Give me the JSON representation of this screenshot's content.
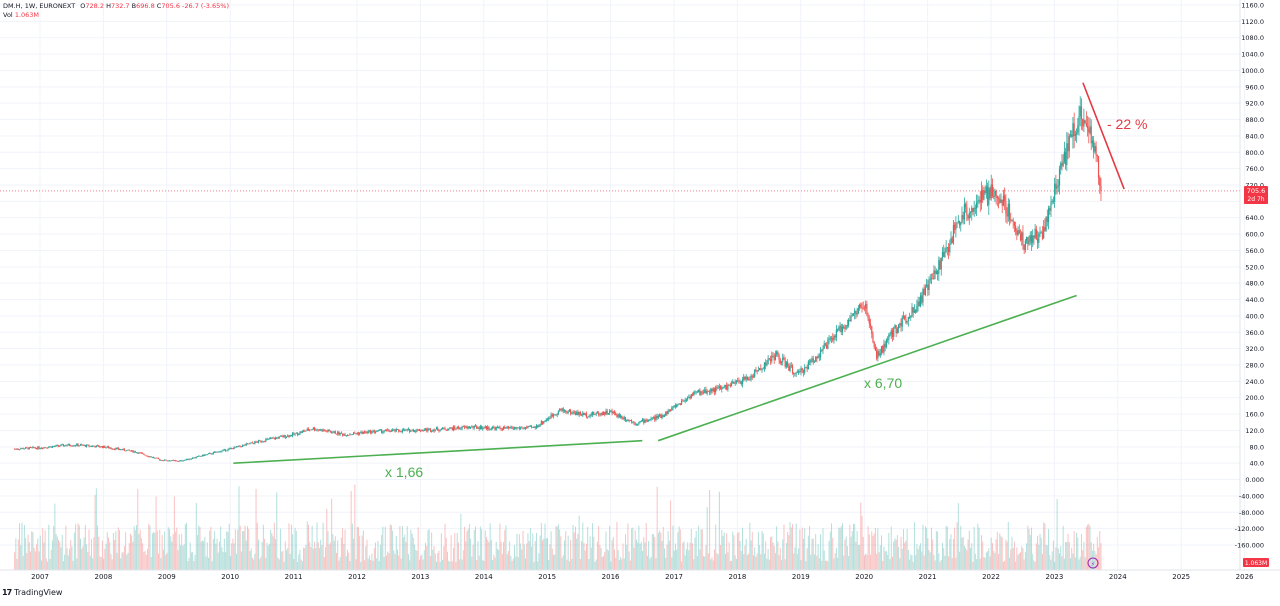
{
  "header": {
    "symbol": "DM.H, 1W, EURONEXT",
    "open_label": "O",
    "open": "728.2",
    "high_label": "H",
    "high": "732.7",
    "low_label": "B",
    "low": "696.8",
    "close_label": "C",
    "close": "705.6",
    "change": "-26.7 (-3.65%)",
    "volume_label": "Vol",
    "volume": "1.063M"
  },
  "price_badge": {
    "price": "705.6",
    "countdown": "2d 7h",
    "color": "#f23645"
  },
  "volume_badge": {
    "value": "1.063M",
    "color": "#f23645"
  },
  "branding": {
    "name": "TradingView"
  },
  "annotations": {
    "trend1_label": "x 1,66",
    "trend2_label": "x 6,70",
    "drop_label": "- 22 %",
    "green_color": "#4caf50",
    "red_color": "#e53945"
  },
  "colors": {
    "up": "#26a69a",
    "down": "#ef5350",
    "grid": "#f0f3fa",
    "axis_text": "#131722"
  },
  "chart_data": {
    "type": "candlestick",
    "interval": "1W",
    "x_axis_labels": [
      "2007",
      "2008",
      "2009",
      "2010",
      "2011",
      "2012",
      "2013",
      "2014",
      "2015",
      "2016",
      "2017",
      "2018",
      "2019",
      "2020",
      "2021",
      "2022",
      "2023",
      "2024",
      "2025",
      "2026"
    ],
    "y_axis_labels": [
      "1160.0",
      "1120.0",
      "1080.0",
      "1040.0",
      "1000.0",
      "960.0",
      "920.0",
      "880.0",
      "840.0",
      "800.0",
      "760.0",
      "720.0",
      "680.0",
      "640.0",
      "600.0",
      "560.0",
      "520.0",
      "480.0",
      "440.0",
      "400.0",
      "360.0",
      "320.0",
      "280.0",
      "240.0",
      "200.0",
      "160.0",
      "120.0",
      "80.0",
      "40.0",
      "0.000",
      "-40.000",
      "-80.000",
      "-120.000",
      "-160.000"
    ],
    "ylim": [
      -180,
      1160
    ],
    "price_path": [
      {
        "x": 2006.6,
        "y": 75
      },
      {
        "x": 2007.0,
        "y": 78
      },
      {
        "x": 2007.5,
        "y": 85
      },
      {
        "x": 2008.0,
        "y": 80
      },
      {
        "x": 2008.5,
        "y": 68
      },
      {
        "x": 2008.9,
        "y": 48
      },
      {
        "x": 2009.2,
        "y": 45
      },
      {
        "x": 2009.6,
        "y": 60
      },
      {
        "x": 2010.0,
        "y": 75
      },
      {
        "x": 2010.5,
        "y": 95
      },
      {
        "x": 2011.0,
        "y": 110
      },
      {
        "x": 2011.3,
        "y": 125
      },
      {
        "x": 2011.8,
        "y": 110
      },
      {
        "x": 2012.3,
        "y": 118
      },
      {
        "x": 2012.8,
        "y": 120
      },
      {
        "x": 2013.3,
        "y": 123
      },
      {
        "x": 2013.8,
        "y": 128
      },
      {
        "x": 2014.3,
        "y": 125
      },
      {
        "x": 2014.8,
        "y": 127
      },
      {
        "x": 2015.2,
        "y": 170
      },
      {
        "x": 2015.6,
        "y": 158
      },
      {
        "x": 2016.0,
        "y": 165
      },
      {
        "x": 2016.4,
        "y": 138
      },
      {
        "x": 2016.8,
        "y": 155
      },
      {
        "x": 2017.3,
        "y": 210
      },
      {
        "x": 2017.8,
        "y": 225
      },
      {
        "x": 2018.2,
        "y": 250
      },
      {
        "x": 2018.6,
        "y": 305
      },
      {
        "x": 2018.95,
        "y": 255
      },
      {
        "x": 2019.3,
        "y": 310
      },
      {
        "x": 2019.7,
        "y": 380
      },
      {
        "x": 2020.0,
        "y": 430
      },
      {
        "x": 2020.2,
        "y": 300
      },
      {
        "x": 2020.5,
        "y": 370
      },
      {
        "x": 2020.8,
        "y": 420
      },
      {
        "x": 2021.0,
        "y": 470
      },
      {
        "x": 2021.3,
        "y": 560
      },
      {
        "x": 2021.5,
        "y": 640
      },
      {
        "x": 2021.8,
        "y": 680
      },
      {
        "x": 2022.0,
        "y": 700
      },
      {
        "x": 2022.2,
        "y": 680
      },
      {
        "x": 2022.5,
        "y": 580
      },
      {
        "x": 2022.8,
        "y": 600
      },
      {
        "x": 2023.0,
        "y": 700
      },
      {
        "x": 2023.3,
        "y": 860
      },
      {
        "x": 2023.45,
        "y": 890
      },
      {
        "x": 2023.6,
        "y": 830
      },
      {
        "x": 2023.75,
        "y": 705
      }
    ],
    "trend_lines": [
      {
        "color": "green",
        "from": {
          "x": 2010.05,
          "y": 40
        },
        "to": {
          "x": 2016.5,
          "y": 95
        }
      },
      {
        "color": "green",
        "from": {
          "x": 2016.75,
          "y": 95
        },
        "to": {
          "x": 2023.35,
          "y": 450
        }
      },
      {
        "color": "red",
        "from": {
          "x": 2023.45,
          "y": 970
        },
        "to": {
          "x": 2024.1,
          "y": 710
        }
      }
    ],
    "last_price": 705.6,
    "volume_last": "1.063M",
    "grid": true
  }
}
